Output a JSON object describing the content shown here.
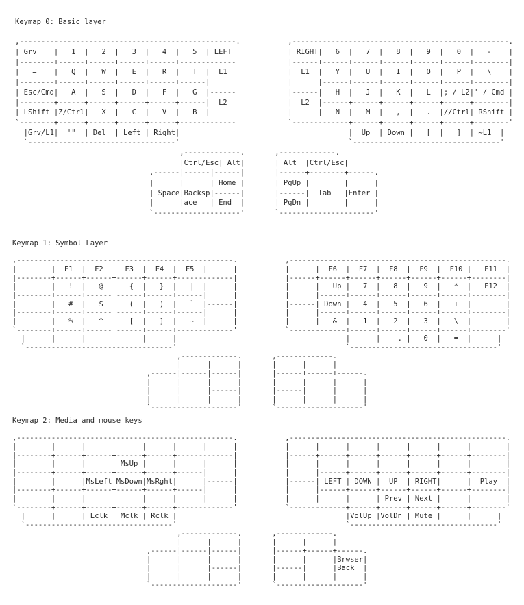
{
  "layers": [
    {
      "title": "Keymap 0: Basic layer",
      "main": [
        {
          "left": ",--------------------------------------------------.",
          "right": ",--------------------------------------------------."
        },
        {
          "left": "| Grv    |   1  |   2  |   3  |   4  |   5  | LEFT |",
          "right": "| RIGHT|   6  |   7  |   8  |   9  |   0  |   -    |"
        },
        {
          "left": "|--------+------+------+------+------+-------------|",
          "right": "|------+------+------+------+------+------+--------|"
        },
        {
          "left": "|   =    |   Q  |   W  |   E  |   R  |   T  |  L1  |",
          "right": "|  L1  |   Y  |   U  |   I  |   O  |   P  |   \\    |"
        },
        {
          "left": "|--------+------+------+------+------+------|      |",
          "right": "|      |------+------+------+------+------+--------|"
        },
        {
          "left": "| Esc/Cmd|   A  |   S  |   D  |   F  |   G  |------|",
          "right": "|------|   H  |   J  |   K  |   L  |; / L2|' / Cmd |"
        },
        {
          "left": "|--------+------+------+------+------+------|  L2  |",
          "right": "|  L2  |------+------+------+------+------+--------|"
        },
        {
          "left": "| LShift |Z/Ctrl|   X  |   C  |   V  |   B  |      |",
          "right": "|      |   N  |   M  |   ,  |   .  |//Ctrl| RShift |"
        },
        {
          "left": "`--------+------+------+------+------+-------------'",
          "right": "`-------------+------+------+------+------+--------'"
        },
        {
          "left": "  |Grv/L1|  '\"  | Del  | Left | Right|",
          "right": "              |  Up  | Down |   [  |   ]  | ~L1  |"
        },
        {
          "left": "  `----------------------------------'",
          "right": "              `----------------------------------'"
        }
      ],
      "thumbs": [
        {
          "left": "       ,-------------.",
          "right": ",-------------."
        },
        {
          "left": "       |Ctrl/Esc| Alt|",
          "right": "| Alt  |Ctrl/Esc|"
        },
        {
          "left": ",------|------|------|",
          "right": "|------+--------+------."
        },
        {
          "left": "|      |      | Home |",
          "right": "| PgUp |        |      |"
        },
        {
          "left": "| Space|Backsp|------|",
          "right": "|------|  Tab   |Enter |"
        },
        {
          "left": "|      |ace   | End  |",
          "right": "| PgDn |        |      |"
        },
        {
          "left": "`--------------------'",
          "right": "`----------------------'"
        }
      ]
    },
    {
      "title": "Keymap 1: Symbol Layer",
      "main": [
        {
          "left": ",--------------------------------------------------.",
          "right": ",--------------------------------------------------."
        },
        {
          "left": "|        |  F1  |  F2  |  F3  |  F4  |  F5  |      |",
          "right": "|      |  F6  |  F7  |  F8  |  F9  |  F10 |   F11  |"
        },
        {
          "left": "|--------+------+------+------+------+-------------|",
          "right": "|------+------+------+------+------+------+--------|"
        },
        {
          "left": "|        |   !  |   @  |   {  |   }  |   |  |      |",
          "right": "|      |   Up |   7  |   8  |   9  |   *  |   F12  |"
        },
        {
          "left": "|--------+------+------+------+------+------|      |",
          "right": "|      |------+------+------+------+------+--------|"
        },
        {
          "left": "|        |   #  |   $  |   (  |   )  |   `  |------|",
          "right": "|------| Down |   4  |   5  |   6  |   +  |        |"
        },
        {
          "left": "|--------+------+------+------+------+------|      |",
          "right": "|      |------+------+------+------+------+--------|"
        },
        {
          "left": "|        |   %  |   ^  |   [  |   ]  |   ~  |      |",
          "right": "|      |   &  |   1  |   2  |   3  |   \\  |        |"
        },
        {
          "left": "`--------+------+------+------+------+-------------'",
          "right": "`-------------+------+------+------+------+--------'"
        },
        {
          "left": "  |      |      |      |      |      |",
          "right": "              |      |    . |   0  |   =  |      |"
        },
        {
          "left": "  `----------------------------------'",
          "right": "              `----------------------------------'"
        }
      ],
      "thumbs": [
        {
          "left": "       ,-------------.",
          "right": ",-------------."
        },
        {
          "left": "       |      |      |",
          "right": "|      |      |"
        },
        {
          "left": ",------|------|------|",
          "right": "|------+------+------."
        },
        {
          "left": "|      |      |      |",
          "right": "|      |      |      |"
        },
        {
          "left": "|      |      |------|",
          "right": "|------|      |      |"
        },
        {
          "left": "|      |      |      |",
          "right": "|      |      |      |"
        },
        {
          "left": "`--------------------'",
          "right": "`--------------------'"
        }
      ]
    },
    {
      "title": "Keymap 2: Media and mouse keys",
      "main": [
        {
          "left": ",--------------------------------------------------.",
          "right": ",--------------------------------------------------."
        },
        {
          "left": "|        |      |      |      |      |      |      |",
          "right": "|      |      |      |      |      |      |        |"
        },
        {
          "left": "|--------+------+------+------+------+-------------|",
          "right": "|------+------+------+------+------+------+--------|"
        },
        {
          "left": "|        |      |      | MsUp |      |      |      |",
          "right": "|      |      |      |      |      |      |        |"
        },
        {
          "left": "|--------+------+------+------+------+------|      |",
          "right": "|      |------+------+------+------+------+--------|"
        },
        {
          "left": "|        |      |MsLeft|MsDown|MsRght|      |------|",
          "right": "|------| LEFT | DOWN |  UP  | RIGHT|      |  Play  |"
        },
        {
          "left": "|--------+------+------+------+------+------|      |",
          "right": "|      |------+------+------+------+------+--------|"
        },
        {
          "left": "|        |      |      |      |      |      |      |",
          "right": "|      |      |      | Prev | Next |      |        |"
        },
        {
          "left": "`--------+------+------+------+------+-------------'",
          "right": "`-------------+------+------+------+------+--------'"
        },
        {
          "left": "  |      |      | Lclk | Mclk | Rclk |",
          "right": "              |VolUp |VolDn | Mute |      |      |"
        },
        {
          "left": "  `----------------------------------'",
          "right": "              `----------------------------------'"
        }
      ],
      "thumbs": [
        {
          "left": "       ,-------------.",
          "right": ",-------------."
        },
        {
          "left": "       |      |      |",
          "right": "|      |      |"
        },
        {
          "left": ",------|------|------|",
          "right": "|------+------+------."
        },
        {
          "left": "|      |      |      |",
          "right": "|      |      |Brwser|"
        },
        {
          "left": "|      |      |------|",
          "right": "|------|      |Back  |"
        },
        {
          "left": "|      |      |      |",
          "right": "|      |      |      |"
        },
        {
          "left": "`--------------------'",
          "right": "`--------------------'"
        }
      ]
    }
  ]
}
